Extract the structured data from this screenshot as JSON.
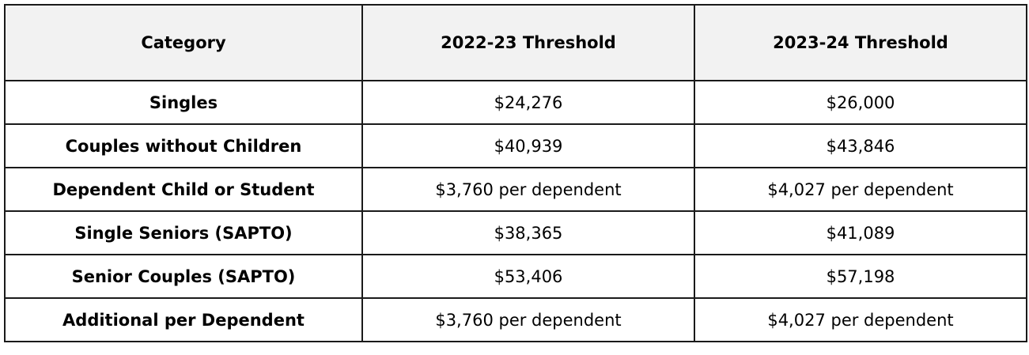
{
  "table": {
    "headers": [
      "Category",
      "2022-23 Threshold",
      "2023-24 Threshold"
    ],
    "rows": [
      [
        "Singles",
        "$24,276",
        "$26,000"
      ],
      [
        "Couples without Children",
        "$40,939",
        "$43,846"
      ],
      [
        "Dependent Child or Student",
        "$3,760 per dependent",
        "$4,027 per dependent"
      ],
      [
        "Single Seniors (SAPTO)",
        "$38,365",
        "$41,089"
      ],
      [
        "Senior Couples (SAPTO)",
        "$53,406",
        "$57,198"
      ],
      [
        "Additional per Dependent",
        "$3,760 per dependent",
        "$4,027 per dependent"
      ]
    ]
  }
}
